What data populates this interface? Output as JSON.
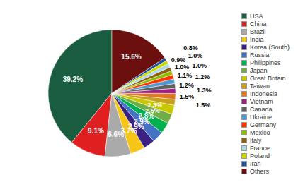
{
  "chart_data": {
    "type": "pie",
    "categories": [
      "USA",
      "China",
      "Brazil",
      "India",
      "Korea (South)",
      "Russia",
      "Philippines",
      "Japan",
      "Great Britain",
      "Taiwan",
      "Indonesia",
      "Vietnam",
      "Canada",
      "Ukraine",
      "Germany",
      "Mexico",
      "Italy",
      "France",
      "Poland",
      "Iran",
      "Others"
    ],
    "values": [
      39.2,
      9.1,
      6.6,
      3.7,
      2.9,
      2.9,
      2.8,
      2.5,
      2.3,
      1.5,
      1.5,
      1.3,
      1.2,
      1.2,
      1.1,
      1.0,
      1.0,
      1.0,
      0.9,
      0.8,
      15.6
    ],
    "value_labels": [
      "39.2%",
      "9.1%",
      "6.6%",
      "3.7%",
      "2.9%",
      "2.9%",
      "2.8%",
      "2.5%",
      "2.3%",
      "1.5%",
      "1.5%",
      "1.3%",
      "1.2%",
      "1.2%",
      "1.1%",
      "1.0%",
      "1.0%",
      "1.0%",
      "0.9%",
      "0.8%",
      "15.6%"
    ],
    "colors": [
      "#1a5c40",
      "#e02020",
      "#aaaaaa",
      "#f5c518",
      "#3a2080",
      "#4472c4",
      "#00b050",
      "#70ad47",
      "#c8c800",
      "#c8a020",
      "#e07820",
      "#9c2080",
      "#606060",
      "#5098d0",
      "#ff3300",
      "#8fbc00",
      "#8b6010",
      "#add8e6",
      "#c8d800",
      "#2050a0",
      "#6b0f0f"
    ],
    "legend": "right",
    "data_labels": true
  }
}
